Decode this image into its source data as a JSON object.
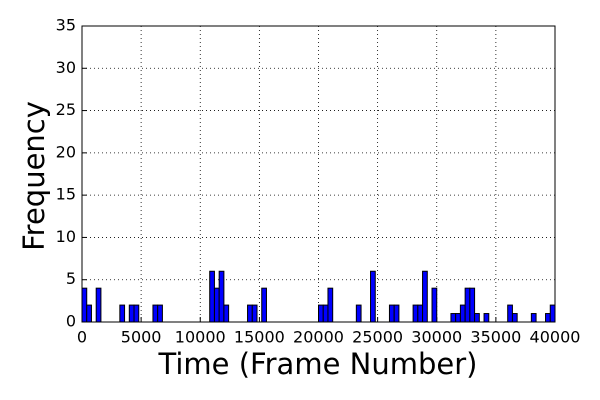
{
  "chart_data": {
    "type": "histogram",
    "xlabel": "Time (Frame Number)",
    "ylabel": "Frequency",
    "bins": [
      0,
      400,
      800,
      1200,
      1600,
      2000,
      2400,
      2800,
      3200,
      3600,
      4000,
      4400,
      4800,
      5200,
      5600,
      6000,
      6400,
      6800,
      7200,
      7600,
      8000,
      8400,
      8800,
      9200,
      9600,
      10000,
      10400,
      10800,
      11200,
      11600,
      12000,
      12400,
      12800,
      13200,
      13600,
      14000,
      14400,
      14800,
      15200,
      15600,
      16000,
      16400,
      16800,
      17200,
      17600,
      18000,
      18400,
      18800,
      19200,
      19600,
      20000,
      20400,
      20800,
      21200,
      21600,
      22000,
      22400,
      22800,
      23200,
      23600,
      24000,
      24400,
      24800,
      25200,
      25600,
      26000,
      26400,
      26800,
      27200,
      27600,
      28000,
      28400,
      28800,
      29200,
      29600,
      30000,
      30400,
      30800,
      31200,
      31600,
      32000,
      32400,
      32800,
      33200,
      33600,
      34000,
      34400,
      34800,
      35200,
      35600,
      36000,
      36400,
      36800,
      37200,
      37600,
      38000,
      38400,
      38800,
      39200,
      39600,
      40000
    ],
    "values": [
      4,
      2,
      0,
      4,
      0,
      0,
      0,
      0,
      2,
      0,
      2,
      2,
      0,
      0,
      0,
      2,
      2,
      0,
      0,
      0,
      0,
      0,
      0,
      0,
      0,
      0,
      0,
      6,
      4,
      6,
      2,
      0,
      0,
      0,
      0,
      2,
      2,
      0,
      4,
      0,
      0,
      0,
      0,
      0,
      0,
      0,
      0,
      0,
      0,
      0,
      2,
      2,
      4,
      0,
      0,
      0,
      0,
      0,
      2,
      0,
      0,
      6,
      0,
      0,
      0,
      2,
      2,
      0,
      0,
      0,
      2,
      2,
      6,
      0,
      4,
      0,
      0,
      0,
      1,
      1,
      2,
      4,
      4,
      1,
      0,
      1,
      0,
      0,
      0,
      0,
      2,
      1,
      0,
      0,
      0,
      1,
      0,
      0,
      1,
      2
    ],
    "color": "#0000ff",
    "xlim": [
      0,
      40000
    ],
    "xticks": [
      0,
      5000,
      10000,
      15000,
      20000,
      25000,
      30000,
      35000,
      40000
    ],
    "ylim": [
      0,
      35
    ],
    "yticks": [
      0,
      5,
      10,
      15,
      20,
      25,
      30,
      35
    ],
    "grid": true
  }
}
